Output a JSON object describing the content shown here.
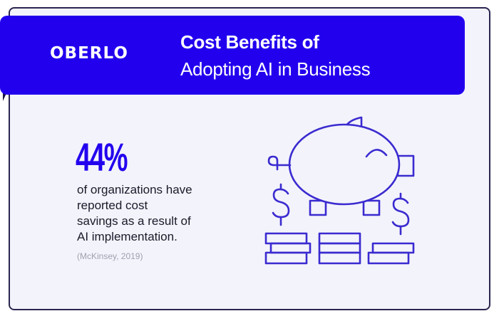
{
  "brand": {
    "logo": "OBERLO"
  },
  "header": {
    "title_line1": "Cost Benefits of",
    "title_line2": "Adopting AI in Business"
  },
  "stat": {
    "value": "44%",
    "description_lines": [
      "of organizations have",
      "reported cost",
      "savings as a result of",
      "AI implementation."
    ],
    "citation": "(McKinsey, 2019)"
  },
  "illustration": {
    "icon": "piggy-bank-with-coins-icon"
  },
  "colors": {
    "accent": "#2200ee",
    "illustration_stroke": "#3a2bd0",
    "background": "#f3f3fb"
  }
}
